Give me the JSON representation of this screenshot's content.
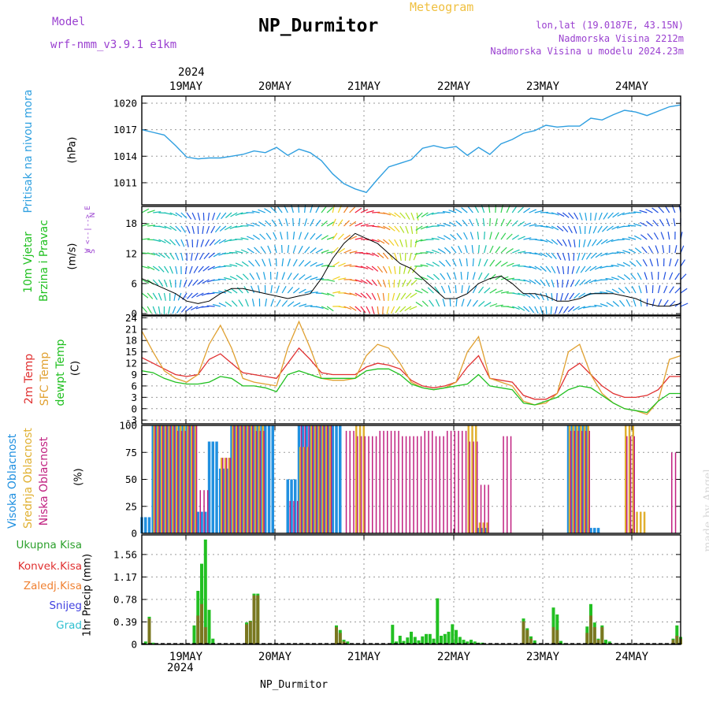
{
  "header": {
    "title": "NP_Durmitor",
    "meteogram_label": "Meteogram",
    "model_label": "Model",
    "model_version": "wrf-nmm_v3.9.1 e1km",
    "info_lines": [
      "lon,lat (19.0187E, 43.15N)",
      "Nadmorska Visina 2212m",
      "Nadmorska Visina u modelu 2024.23m"
    ],
    "year_top": "2024",
    "year_bottom": "2024",
    "bottom_label": "NP_Durmitor",
    "credit": "made by Angel"
  },
  "day_labels": [
    "19MAY",
    "20MAY",
    "21MAY",
    "22MAY",
    "23MAY",
    "24MAY"
  ],
  "panel_labels": {
    "pressure": [
      "Pritisak na nivou mora"
    ],
    "pressure_unit": "(hPa)",
    "wind": [
      "10m Vjetar",
      "Brzina i Pravac"
    ],
    "wind_unit": "(m/s)",
    "wind_compass": [
      "N",
      "^",
      "|",
      "W <--|--> E",
      "|",
      "v",
      "S"
    ],
    "temp_2m": "2m Temp",
    "temp_sfc": "SFC Temp",
    "temp_dew": "dewpt Temp",
    "temp_unit": "(C)",
    "cloud_high": "Visoka Oblacnost",
    "cloud_mid": "Srednja Oblacnost",
    "cloud_low": "Niska Oblacnost",
    "cloud_unit": "(%)",
    "precip_unit": "1hr Precip (mm)"
  },
  "precip_legend": [
    {
      "label": "Ukupna Kisa",
      "color": "#2ca02c"
    },
    {
      "label": "Konvek.Kisa",
      "color": "#e03030"
    },
    {
      "label": "Zaledj.Kisa",
      "color": "#f08030"
    },
    {
      "label": "Snijeg",
      "color": "#4040e0"
    },
    {
      "label": "Grad",
      "color": "#30c0d0"
    }
  ],
  "colors": {
    "pressure": "#2f9fe0",
    "temp_2m": "#e03030",
    "temp_sfc": "#e0a030",
    "temp_dew": "#20c020",
    "cloud_high": "#2090e0",
    "cloud_mid": "#e0b030",
    "cloud_low": "#c02080",
    "precip": "#22c022",
    "precip_conv": "#8a6a20"
  },
  "chart_data": [
    {
      "type": "line",
      "title": "Pritisak na nivou mora",
      "ylabel": "(hPa)",
      "ylim": [
        1008.5,
        1020.8
      ],
      "yticks": [
        1011,
        1014,
        1017,
        1020
      ],
      "x_hours": [
        0,
        3,
        6,
        9,
        12,
        15,
        18,
        21,
        24,
        27,
        30,
        33,
        36,
        39,
        42,
        45,
        48,
        51,
        54,
        57,
        60,
        63,
        66,
        69,
        72,
        75,
        78,
        81,
        84,
        87,
        90,
        93,
        96,
        99,
        102,
        105,
        108,
        111,
        114,
        117,
        120,
        123,
        126,
        129,
        132,
        135,
        138,
        141,
        144
      ],
      "series": [
        {
          "name": "Pritisak na nivou mora",
          "values": [
            1017.0,
            1016.7,
            1016.4,
            1015.2,
            1013.9,
            1013.7,
            1013.8,
            1013.8,
            1014.0,
            1014.2,
            1014.6,
            1014.4,
            1015.0,
            1014.1,
            1014.8,
            1014.4,
            1013.5,
            1012.0,
            1010.9,
            1010.3,
            1009.9,
            1011.4,
            1012.8,
            1013.2,
            1013.6,
            1014.9,
            1015.2,
            1014.9,
            1015.1,
            1014.1,
            1015.0,
            1014.2,
            1015.4,
            1015.9,
            1016.6,
            1016.9,
            1017.5,
            1017.3,
            1017.4,
            1017.4,
            1018.3,
            1018.1,
            1018.7,
            1019.2,
            1019.0,
            1018.6,
            1019.1,
            1019.6,
            1019.8
          ]
        }
      ]
    },
    {
      "type": "line",
      "title": "10m Vjetar Brzina i Pravac",
      "ylabel": "(m/s)",
      "ylim": [
        -0.3,
        21.4
      ],
      "yticks": [
        0,
        6,
        12,
        18
      ],
      "x_hours": [
        0,
        3,
        6,
        9,
        12,
        15,
        18,
        21,
        24,
        27,
        30,
        33,
        36,
        39,
        42,
        45,
        48,
        51,
        54,
        57,
        60,
        63,
        66,
        69,
        72,
        75,
        78,
        81,
        84,
        87,
        90,
        93,
        96,
        99,
        102,
        105,
        108,
        111,
        114,
        117,
        120,
        123,
        126,
        129,
        132,
        135,
        138,
        141,
        144
      ],
      "series": [
        {
          "name": "Brzina",
          "values": [
            7,
            6,
            5,
            4,
            2.5,
            2,
            2.5,
            4,
            5,
            5,
            4.5,
            4,
            3.5,
            3,
            3.5,
            4,
            7,
            11,
            14,
            16,
            15,
            14,
            12,
            10,
            9,
            7,
            5,
            3,
            3,
            4,
            6,
            7,
            7.5,
            6,
            4,
            4,
            3.5,
            2.5,
            2.5,
            3,
            4,
            4,
            4,
            3.5,
            3,
            2,
            1.5,
            1.5,
            2
          ]
        }
      ]
    },
    {
      "type": "line",
      "title": "2m Temp / SFC Temp / dewpt Temp",
      "ylabel": "(C)",
      "ylim": [
        -4,
        24.5
      ],
      "yticks": [
        -3,
        0,
        3,
        6,
        9,
        12,
        15,
        18,
        21,
        24
      ],
      "x_hours": [
        0,
        3,
        6,
        9,
        12,
        15,
        18,
        21,
        24,
        27,
        30,
        33,
        36,
        39,
        42,
        45,
        48,
        51,
        54,
        57,
        60,
        63,
        66,
        69,
        72,
        75,
        78,
        81,
        84,
        87,
        90,
        93,
        96,
        99,
        102,
        105,
        108,
        111,
        114,
        117,
        120,
        123,
        126,
        129,
        132,
        135,
        138,
        141,
        144
      ],
      "series": [
        {
          "name": "2m Temp",
          "values": [
            13.5,
            12,
            10.5,
            9,
            8.5,
            9,
            13,
            14.5,
            12,
            9.5,
            9,
            8.5,
            8,
            12,
            16,
            13,
            9.5,
            9,
            9,
            9,
            11,
            12,
            11.5,
            10.5,
            7.5,
            6,
            5.5,
            6,
            7,
            11,
            14,
            8,
            7.5,
            7,
            3.5,
            2.5,
            2.5,
            4,
            10,
            12,
            9,
            6,
            4,
            3,
            3,
            3.5,
            5,
            8.5,
            8.5
          ]
        },
        {
          "name": "SFC Temp",
          "values": [
            20.5,
            15,
            10,
            8,
            7,
            9,
            17,
            22,
            16,
            8,
            7,
            6.5,
            6,
            16,
            23,
            16,
            8,
            7.5,
            7.5,
            8,
            14,
            17,
            16,
            12,
            7,
            5.5,
            5,
            5.5,
            7,
            15,
            19,
            8,
            7,
            6,
            2,
            1,
            1.5,
            4,
            15,
            17,
            9,
            4,
            1.5,
            0,
            -0.5,
            -1.5,
            2,
            13,
            14
          ]
        },
        {
          "name": "dewpt Temp",
          "values": [
            10,
            9.5,
            8,
            7,
            6.5,
            6.5,
            7,
            8.5,
            8,
            6,
            6,
            5.5,
            4.5,
            9,
            10,
            9,
            8,
            8,
            8,
            8,
            10,
            10.5,
            10.5,
            9,
            6.5,
            5.5,
            5,
            5.5,
            6,
            6.5,
            9,
            6,
            5.5,
            5,
            1.5,
            1,
            2,
            3,
            5,
            6,
            5.5,
            3.5,
            1.5,
            0,
            -0.5,
            -1,
            2,
            4,
            4
          ]
        }
      ]
    },
    {
      "type": "bar",
      "title": "Visoka / Srednja / Niska Oblacnost",
      "ylabel": "(%)",
      "ylim": [
        0,
        100
      ],
      "yticks": [
        0,
        25,
        50,
        75,
        100
      ],
      "x_hours": [
        0,
        3,
        6,
        9,
        12,
        15,
        18,
        21,
        24,
        27,
        30,
        33,
        36,
        39,
        42,
        45,
        48,
        51,
        54,
        57,
        60,
        63,
        66,
        69,
        72,
        75,
        78,
        81,
        84,
        87,
        90,
        93,
        96,
        99,
        102,
        105,
        108,
        111,
        114,
        117,
        120,
        123,
        126,
        129,
        132,
        135,
        138,
        141,
        144
      ],
      "series": [
        {
          "name": "Visoka Oblacnost",
          "values": [
            15,
            100,
            100,
            100,
            100,
            20,
            85,
            60,
            100,
            100,
            100,
            100,
            0,
            50,
            100,
            100,
            100,
            100,
            0,
            0,
            0,
            0,
            0,
            0,
            0,
            0,
            0,
            0,
            0,
            0,
            5,
            0,
            0,
            0,
            0,
            0,
            0,
            0,
            100,
            100,
            5,
            0,
            0,
            0,
            0,
            0,
            0,
            0,
            0
          ]
        },
        {
          "name": "Srednja Oblacnost",
          "values": [
            0,
            100,
            100,
            100,
            100,
            0,
            0,
            70,
            100,
            100,
            100,
            0,
            0,
            0,
            80,
            100,
            100,
            0,
            0,
            100,
            0,
            0,
            0,
            0,
            0,
            0,
            0,
            0,
            0,
            100,
            10,
            0,
            0,
            0,
            0,
            0,
            0,
            0,
            100,
            100,
            0,
            0,
            0,
            100,
            20,
            0,
            0,
            0,
            60
          ]
        },
        {
          "name": "Niska Oblacnost",
          "values": [
            0,
            100,
            100,
            95,
            100,
            40,
            0,
            70,
            100,
            100,
            95,
            0,
            0,
            30,
            100,
            100,
            100,
            0,
            95,
            90,
            90,
            95,
            95,
            90,
            90,
            95,
            90,
            95,
            95,
            85,
            45,
            0,
            90,
            0,
            0,
            0,
            0,
            0,
            95,
            95,
            0,
            0,
            0,
            90,
            0,
            0,
            0,
            75,
            0
          ]
        }
      ]
    },
    {
      "type": "bar",
      "title": "1hr Precip (mm)",
      "ylabel": "1hr Precip (mm)",
      "ylim": [
        0,
        1.9
      ],
      "yticks": [
        0,
        0.39,
        0.78,
        1.17,
        1.56
      ],
      "x_hours": [
        1,
        2,
        3,
        14,
        15,
        16,
        17,
        18,
        19,
        28,
        29,
        30,
        31,
        52,
        53,
        54,
        55,
        67,
        68,
        69,
        70,
        71,
        72,
        73,
        74,
        75,
        76,
        77,
        78,
        79,
        80,
        81,
        82,
        83,
        84,
        85,
        86,
        87,
        88,
        89,
        90,
        91,
        102,
        103,
        104,
        105,
        110,
        111,
        112,
        113,
        119,
        120,
        121,
        122,
        123,
        124,
        125,
        142,
        143,
        144
      ],
      "series": [
        {
          "name": "Ukupna Kisa",
          "values": [
            0.05,
            0.48,
            0.03,
            0.33,
            0.93,
            1.4,
            1.82,
            0.6,
            0.1,
            0.38,
            0.41,
            0.88,
            0.88,
            0.33,
            0.25,
            0.08,
            0.05,
            0.34,
            0.05,
            0.15,
            0.06,
            0.12,
            0.22,
            0.13,
            0.07,
            0.14,
            0.18,
            0.18,
            0.1,
            0.8,
            0.15,
            0.18,
            0.22,
            0.35,
            0.25,
            0.13,
            0.08,
            0.05,
            0.08,
            0.05,
            0.03,
            0.03,
            0.45,
            0.28,
            0.14,
            0.07,
            0.64,
            0.52,
            0.06,
            0.02,
            0.31,
            0.7,
            0.38,
            0.1,
            0.33,
            0.08,
            0.05,
            0.1,
            0.33,
            0.13
          ]
        },
        {
          "name": "Konvek.Kisa",
          "values": [
            0,
            0.45,
            0,
            0,
            0.5,
            0.7,
            0.3,
            0,
            0,
            0.35,
            0.4,
            0.85,
            0.85,
            0.3,
            0.2,
            0.05,
            0,
            0,
            0,
            0,
            0,
            0,
            0,
            0,
            0,
            0,
            0,
            0,
            0,
            0,
            0,
            0,
            0,
            0,
            0,
            0,
            0,
            0,
            0,
            0,
            0,
            0,
            0.4,
            0.25,
            0.1,
            0,
            0.3,
            0.25,
            0,
            0,
            0.2,
            0.5,
            0.3,
            0.08,
            0.3,
            0,
            0,
            0.08,
            0.15,
            0.1
          ]
        }
      ]
    }
  ]
}
